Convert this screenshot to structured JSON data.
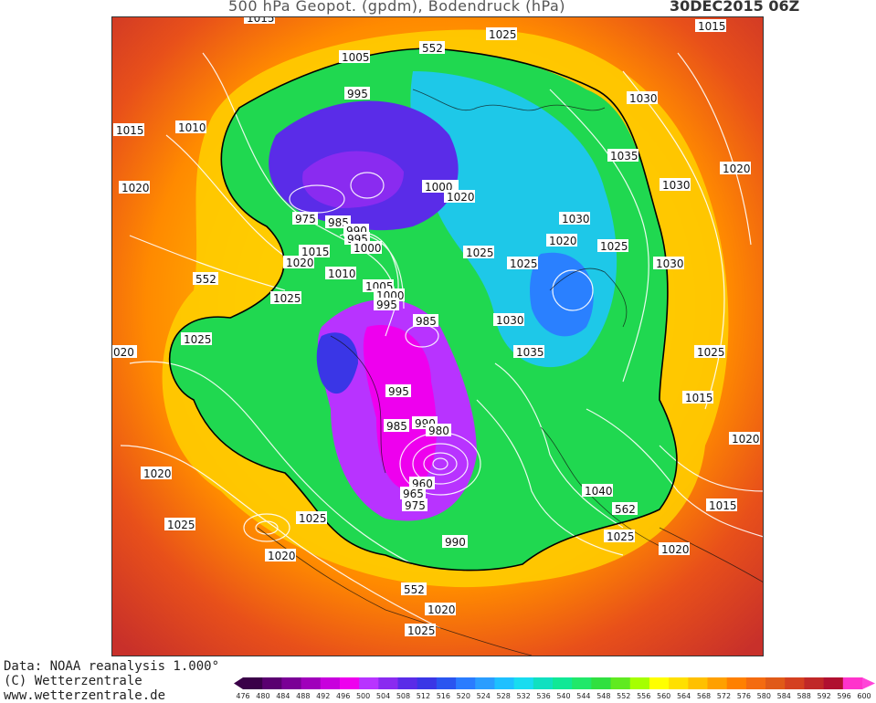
{
  "header": {
    "title": "500 hPa Geopot. (gpdm), Bodendruck (hPa)",
    "date": "30DEC2015 06Z"
  },
  "credits": {
    "data": "Data: NOAA reanalysis 1.000°",
    "copyright": "(C) Wetterzentrale",
    "url": "www.wetterzentrale.de"
  },
  "legend": {
    "ticks": [
      "476",
      "480",
      "484",
      "488",
      "492",
      "496",
      "500",
      "504",
      "508",
      "512",
      "516",
      "520",
      "524",
      "528",
      "532",
      "536",
      "540",
      "544",
      "548",
      "552",
      "556",
      "560",
      "564",
      "568",
      "572",
      "576",
      "580",
      "584",
      "588",
      "592",
      "596",
      "600"
    ],
    "colors": [
      "#3a0048",
      "#5a0070",
      "#7a0096",
      "#a000bb",
      "#c800dd",
      "#ee00ee",
      "#b833ff",
      "#8a2bf0",
      "#5a2ce8",
      "#3a36e6",
      "#2a55f0",
      "#2a7cff",
      "#2a9dff",
      "#1ec0ff",
      "#18dcf0",
      "#10e0c0",
      "#10e896",
      "#20e86a",
      "#30e040",
      "#60ea20",
      "#a6ff00",
      "#ffff00",
      "#ffe000",
      "#ffc000",
      "#ffa000",
      "#ff8000",
      "#f46b10",
      "#e05a18",
      "#d44020",
      "#c02828",
      "#b01030",
      "#ff33cc"
    ],
    "end_color": "#ff44d8"
  },
  "map": {
    "labels": [
      {
        "text": "1015"
      },
      {
        "text": "1025"
      },
      {
        "text": "1015"
      },
      {
        "text": "1005"
      },
      {
        "text": "552"
      },
      {
        "text": "995"
      },
      {
        "text": "1030"
      },
      {
        "text": "1010"
      },
      {
        "text": "1015"
      },
      {
        "text": "1035"
      },
      {
        "text": "1020"
      },
      {
        "text": "1020"
      },
      {
        "text": "1030"
      },
      {
        "text": "1000"
      },
      {
        "text": "1020"
      },
      {
        "text": "975"
      },
      {
        "text": "985"
      },
      {
        "text": "990"
      },
      {
        "text": "995"
      },
      {
        "text": "1000"
      },
      {
        "text": "1030"
      },
      {
        "text": "1020"
      },
      {
        "text": "1025"
      },
      {
        "text": "1025"
      },
      {
        "text": "1015"
      },
      {
        "text": "1020"
      },
      {
        "text": "1025"
      },
      {
        "text": "1030"
      },
      {
        "text": "1010"
      },
      {
        "text": "552"
      },
      {
        "text": "1025"
      },
      {
        "text": "1005"
      },
      {
        "text": "1000"
      },
      {
        "text": "995"
      },
      {
        "text": "985"
      },
      {
        "text": "1030"
      },
      {
        "text": "1025"
      },
      {
        "text": "1035"
      },
      {
        "text": "020"
      },
      {
        "text": "1025"
      },
      {
        "text": "995"
      },
      {
        "text": "1015"
      },
      {
        "text": "985"
      },
      {
        "text": "990"
      },
      {
        "text": "980"
      },
      {
        "text": "1020"
      },
      {
        "text": "960"
      },
      {
        "text": "965"
      },
      {
        "text": "975"
      },
      {
        "text": "1040"
      },
      {
        "text": "1020"
      },
      {
        "text": "1025"
      },
      {
        "text": "1025"
      },
      {
        "text": "562"
      },
      {
        "text": "1015"
      },
      {
        "text": "1025"
      },
      {
        "text": "1020"
      },
      {
        "text": "990"
      },
      {
        "text": "1020"
      },
      {
        "text": "552"
      },
      {
        "text": "1020"
      },
      {
        "text": "1025"
      }
    ]
  }
}
